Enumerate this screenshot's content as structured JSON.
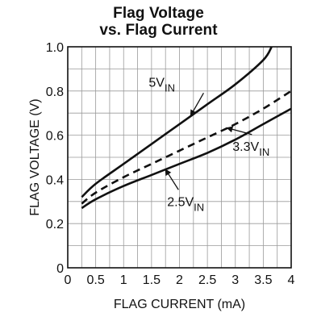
{
  "chart_data": {
    "type": "line",
    "title_line1": "Flag Voltage",
    "title_line2": "vs. Flag Current",
    "xlabel": "FLAG CURRENT (mA)",
    "ylabel": "FLAG VOLTAGE (V)",
    "xlim": [
      0,
      4
    ],
    "ylim": [
      0,
      1.0
    ],
    "x_ticks": [
      "0",
      "0.5",
      "1",
      "1.5",
      "2",
      "2.5",
      "3",
      "3.5",
      "4"
    ],
    "y_ticks": [
      "0",
      "0.2",
      "0.4",
      "0.6",
      "0.8",
      "1.0"
    ],
    "grid": true,
    "series": [
      {
        "name": "5V",
        "subscript": "IN",
        "style": "solid",
        "x": [
          0.25,
          0.5,
          1.0,
          1.5,
          2.0,
          2.5,
          3.0,
          3.5,
          3.65
        ],
        "y": [
          0.32,
          0.38,
          0.47,
          0.56,
          0.65,
          0.74,
          0.83,
          0.94,
          1.0
        ]
      },
      {
        "name": "3.3V",
        "subscript": "IN",
        "style": "dashed",
        "x": [
          0.25,
          0.5,
          1.0,
          1.5,
          2.0,
          2.5,
          3.0,
          3.5,
          4.0
        ],
        "y": [
          0.29,
          0.34,
          0.41,
          0.47,
          0.53,
          0.59,
          0.65,
          0.72,
          0.8
        ]
      },
      {
        "name": "2.5V",
        "subscript": "IN",
        "style": "solid",
        "x": [
          0.25,
          0.5,
          1.0,
          1.5,
          2.0,
          2.5,
          3.0,
          3.5,
          4.0
        ],
        "y": [
          0.27,
          0.31,
          0.37,
          0.42,
          0.47,
          0.52,
          0.58,
          0.65,
          0.72
        ]
      }
    ]
  }
}
